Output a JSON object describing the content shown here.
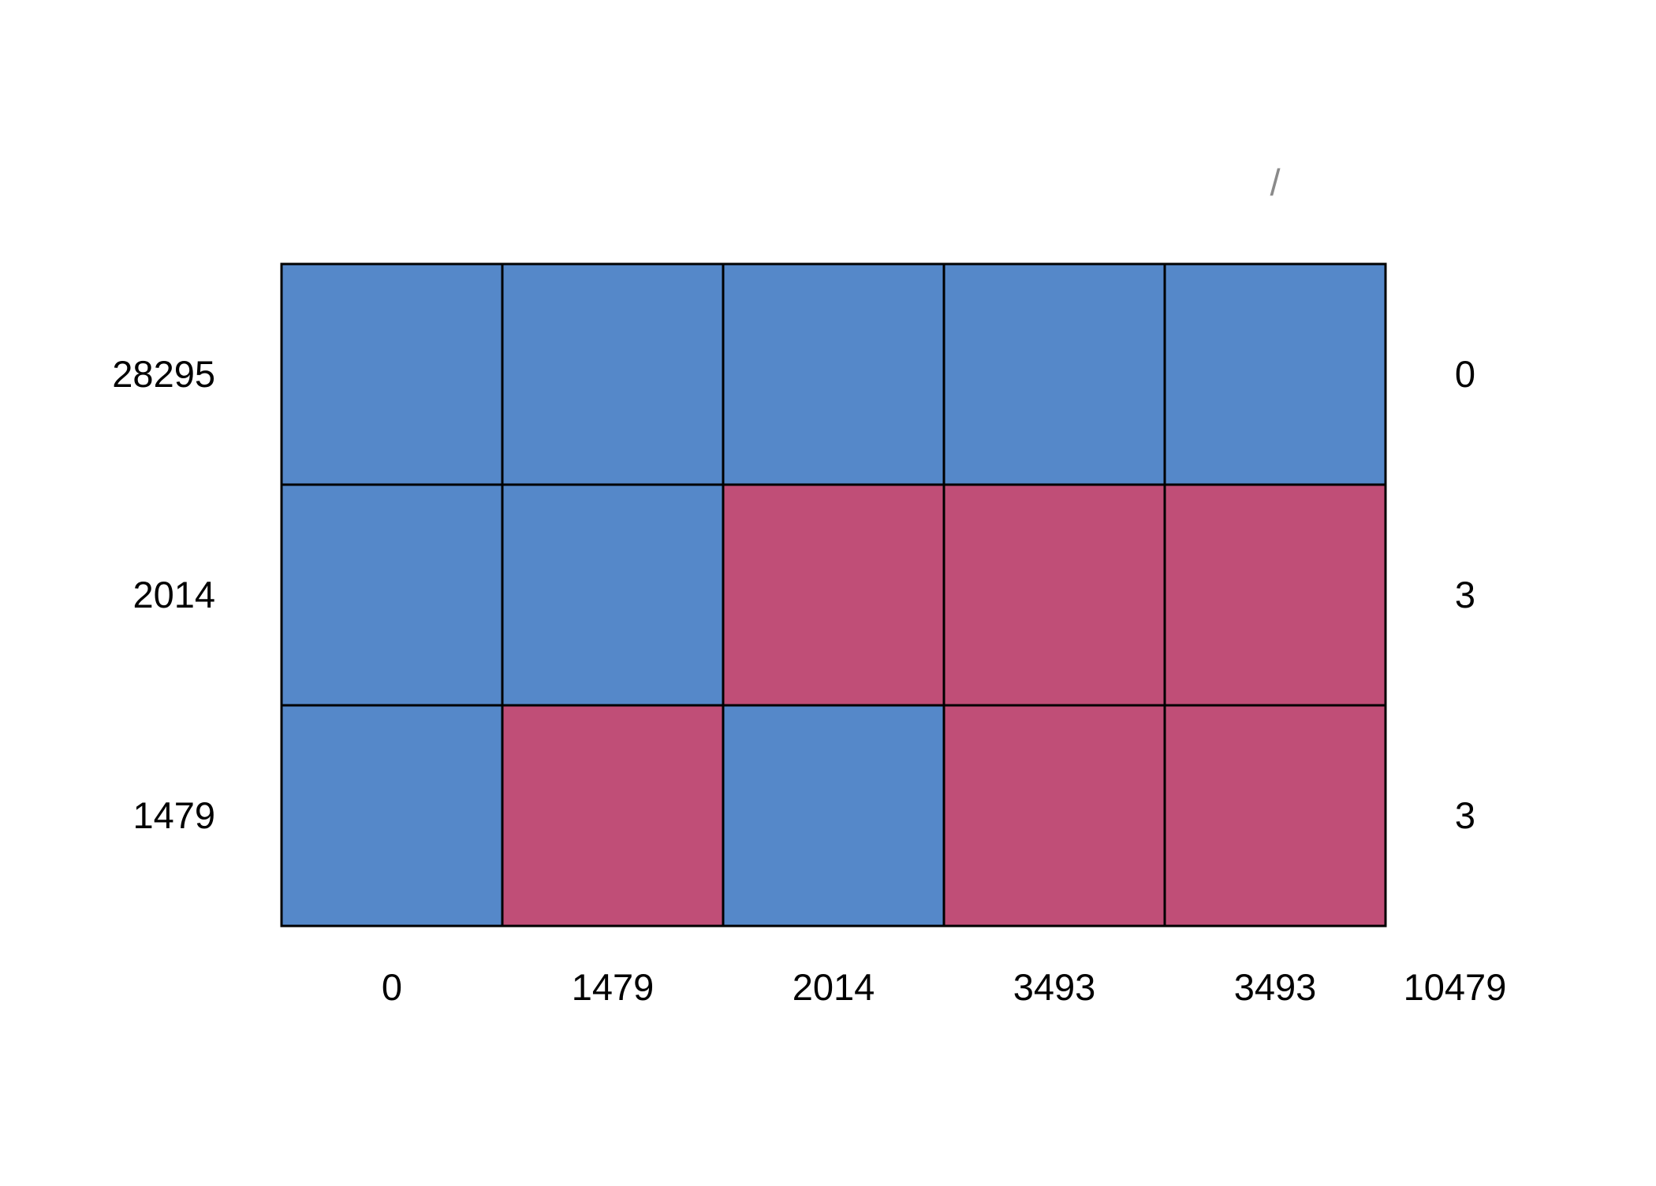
{
  "chart_data": {
    "type": "heatmap",
    "title": "",
    "xlabel": "",
    "ylabel": "",
    "column_headers": [
      "",
      "",
      "",
      "",
      "/"
    ],
    "row_labels": [
      "28295",
      "2014",
      "1479"
    ],
    "row_totals": [
      "0",
      "3",
      "3"
    ],
    "column_totals": [
      "0",
      "1479",
      "2014",
      "3493",
      "3493",
      "10479"
    ],
    "cells": [
      [
        0,
        0,
        0,
        0,
        0
      ],
      [
        0,
        0,
        1,
        1,
        1
      ],
      [
        0,
        1,
        0,
        1,
        1
      ]
    ],
    "colors": {
      "0": "#5588c9",
      "1": "#c04e77"
    },
    "grid": true,
    "legend": "none"
  }
}
